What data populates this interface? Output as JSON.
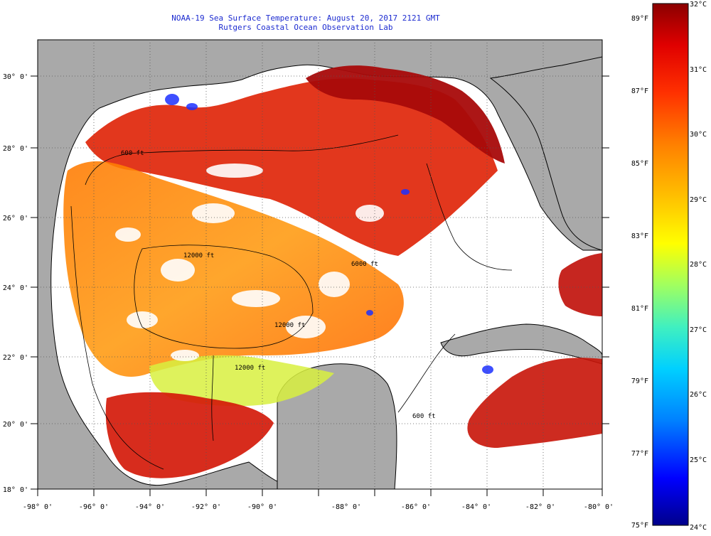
{
  "header": {
    "title_line1": "NOAA-19 Sea Surface Temperature:  August 20, 2017 2121 GMT",
    "title_line2": "Rutgers Coastal Ocean Observation Lab"
  },
  "map": {
    "region": "Gulf of Mexico",
    "colors": {
      "land": "#a9a9a9",
      "cloud": "#ffffff",
      "coast": "#000000"
    },
    "lon_ticks": [
      "-98° 0'",
      "-96° 0'",
      "-94° 0'",
      "-92° 0'",
      "-90° 0'",
      "-88° 0'",
      "-86° 0'",
      "-84° 0'",
      "-82° 0'",
      "-80° 0'"
    ],
    "lat_ticks": [
      "30° 0'",
      "28° 0'",
      "26° 0'",
      "24° 0'",
      "22° 0'",
      "20° 0'",
      "18° 0'"
    ],
    "contour_labels": [
      "600 ft",
      "12000 ft",
      "12000 ft",
      "600 ft",
      "12000 ft",
      "6000 ft"
    ]
  },
  "colorbar": {
    "celsius_ticks": [
      "32°C",
      "31°C",
      "30°C",
      "29°C",
      "28°C",
      "27°C",
      "26°C",
      "25°C",
      "24°C"
    ],
    "fahrenheit_ticks": [
      "89°F",
      "87°F",
      "85°F",
      "83°F",
      "81°F",
      "79°F",
      "77°F",
      "75°F"
    ],
    "range_celsius": [
      24,
      32
    ],
    "stops": [
      "#00008b",
      "#0000ff",
      "#0080ff",
      "#00d0ff",
      "#40f0c0",
      "#a0ff60",
      "#ffff00",
      "#ffc000",
      "#ff8000",
      "#ff3000",
      "#e00000",
      "#8b0000"
    ]
  }
}
